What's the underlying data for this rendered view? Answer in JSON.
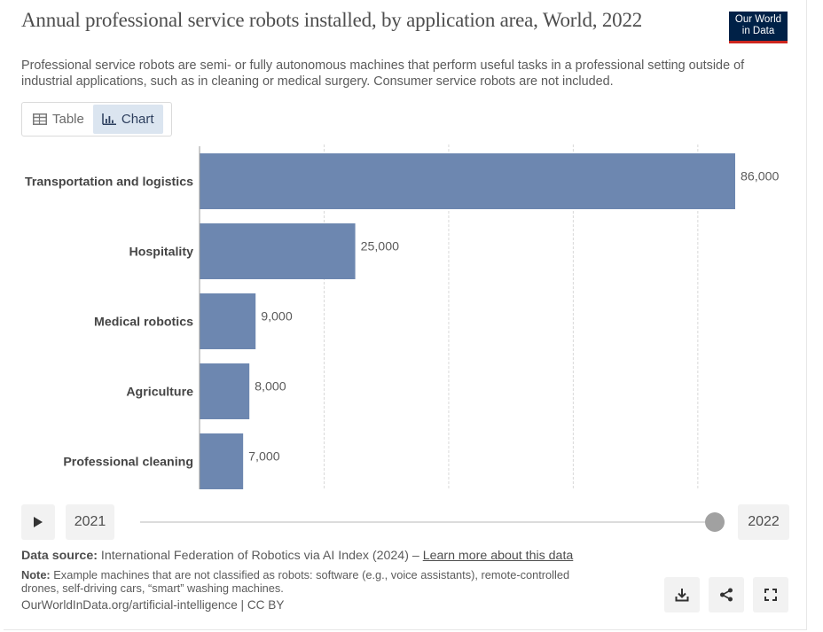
{
  "header": {
    "title": "Annual professional service robots installed, by application area, World, 2022",
    "subtitle": "Professional service robots are semi- or fully autonomous machines that perform useful tasks in a professional setting outside of industrial applications, such as in cleaning or medical surgery. Consumer service robots are not included.",
    "logo_line1": "Our World",
    "logo_line2": "in Data"
  },
  "tabs": [
    {
      "label": "Table",
      "icon": "table-icon",
      "active": false
    },
    {
      "label": "Chart",
      "icon": "chart-icon",
      "active": true
    }
  ],
  "chart_data": {
    "type": "bar",
    "orientation": "horizontal",
    "categories": [
      "Transportation and logistics",
      "Hospitality",
      "Medical robotics",
      "Agriculture",
      "Professional cleaning"
    ],
    "values": [
      86000,
      25000,
      9000,
      8000,
      7000
    ],
    "value_labels": [
      "86,000",
      "25,000",
      "9,000",
      "8,000",
      "7,000"
    ],
    "xlim": [
      0,
      86000
    ],
    "gridlines": [
      20000,
      40000,
      60000,
      80000
    ],
    "grid": true,
    "bar_color": "#6d87b0"
  },
  "timeline": {
    "start_year": "2021",
    "end_year": "2022",
    "selected_year": "2022"
  },
  "footer": {
    "source_label": "Data source:",
    "source_text": "International Federation of Robotics via AI Index (2024) – ",
    "source_link": "Learn more about this data",
    "note_label": "Note:",
    "note_text": "Example machines that are not classified as robots: software (e.g., voice assistants), remote-controlled drones, self-driving cars, “smart” washing machines.",
    "license": "OurWorldInData.org/artificial-intelligence | CC BY"
  },
  "actions": [
    {
      "name": "download-button",
      "icon": "download-icon"
    },
    {
      "name": "share-button",
      "icon": "share-icon"
    },
    {
      "name": "fullscreen-button",
      "icon": "fullscreen-icon"
    }
  ]
}
